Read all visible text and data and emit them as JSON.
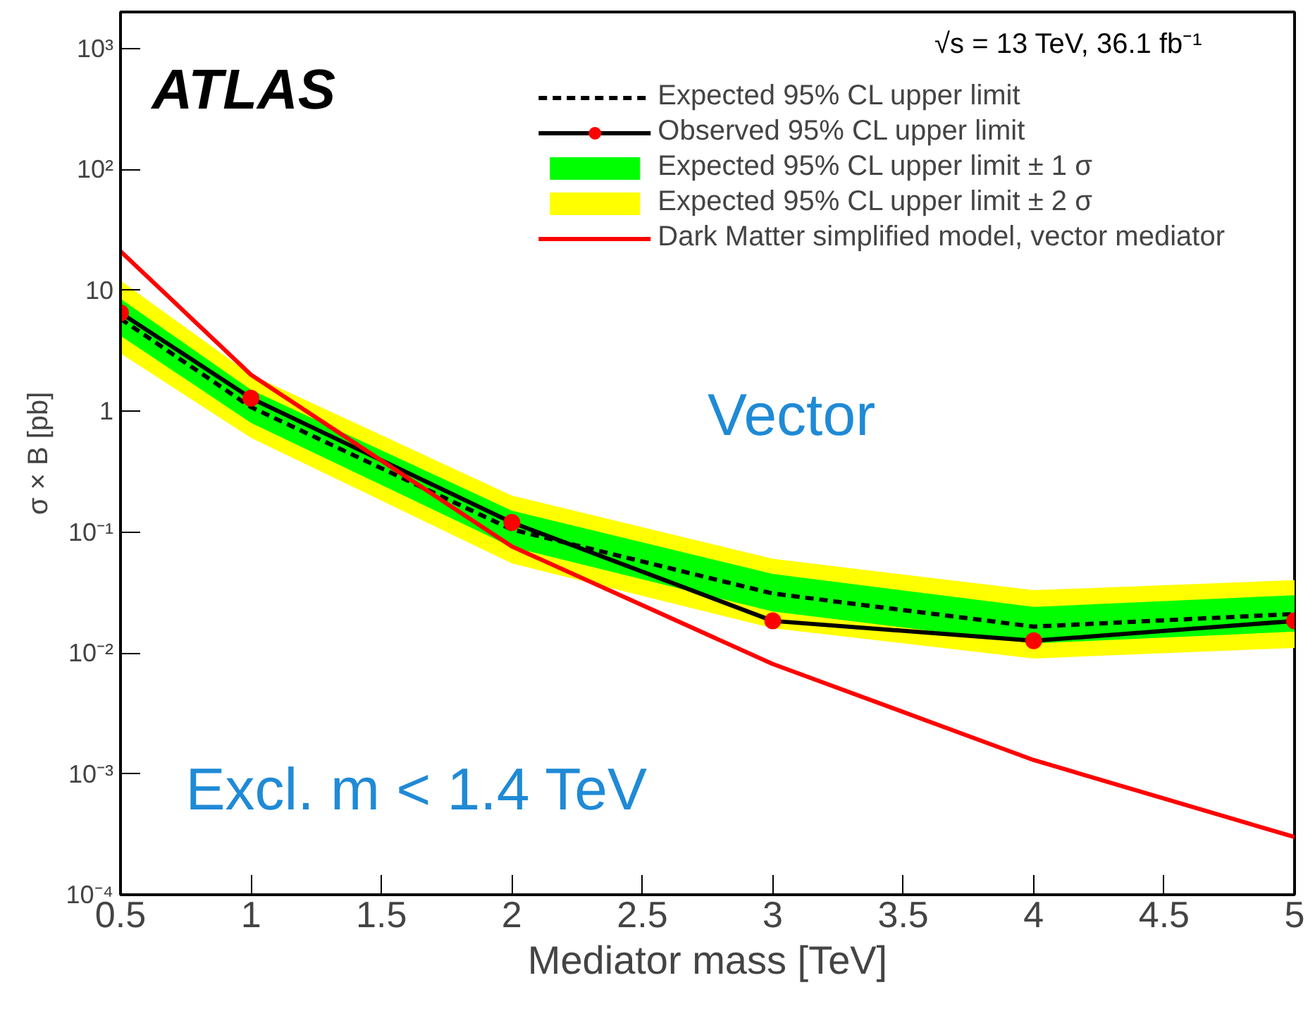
{
  "chart_data": {
    "type": "line",
    "x": [
      0.5,
      1,
      2,
      3,
      4,
      5
    ],
    "xlabel": "Mediator mass [TeV]",
    "ylabel": "σ × B [pb]",
    "xlim": [
      0.5,
      5
    ],
    "xticks": [
      0.5,
      1,
      1.5,
      2,
      2.5,
      3,
      3.5,
      4,
      4.5,
      5
    ],
    "ylim": [
      0.0001,
      2000
    ],
    "log": "y",
    "yticks": [
      {
        "value": 0.0001,
        "label": "10⁻⁴"
      },
      {
        "value": 0.001,
        "label": "10⁻³"
      },
      {
        "value": 0.01,
        "label": "10⁻²"
      },
      {
        "value": 0.1,
        "label": "10⁻¹"
      },
      1,
      10,
      {
        "value": 100,
        "label": "10²"
      },
      {
        "value": 1000,
        "label": "10³"
      }
    ],
    "grid": false,
    "legend": "top right",
    "series": [
      {
        "name": "Expected 95% CL upper limit ± 2 σ",
        "type": "area",
        "color": "#ffff00",
        "values": [
          null,
          null,
          null,
          null,
          null,
          null
        ],
        "lower": [
          3,
          0.6,
          0.055,
          0.016,
          0.009,
          0.011
        ],
        "upper": [
          12,
          2.0,
          0.2,
          0.06,
          0.033,
          0.04
        ]
      },
      {
        "name": "Expected 95% CL upper limit ± 1 σ",
        "type": "area",
        "color": "#00ff00",
        "values": [
          null,
          null,
          null,
          null,
          null,
          null
        ],
        "lower": [
          4.2,
          0.8,
          0.075,
          0.022,
          0.012,
          0.015
        ],
        "upper": [
          8.5,
          1.5,
          0.15,
          0.045,
          0.024,
          0.03
        ]
      },
      {
        "name": "Expected 95% CL upper limit",
        "type": "line",
        "color": "#000000",
        "line_style": "dashed",
        "marker": "none",
        "values": [
          5.8,
          1.08,
          0.105,
          0.031,
          0.0165,
          0.021
        ]
      },
      {
        "name": "Observed 95% CL upper limit",
        "type": "line",
        "color": "#000000",
        "line_style": "solid",
        "marker": "circle",
        "values": [
          6.5,
          1.28,
          0.12,
          0.0184,
          0.0126,
          0.0184
        ]
      },
      {
        "name": "Dark Matter simplified model, vector mediator",
        "type": "line",
        "color": "#ff0000",
        "line_style": "solid",
        "marker": "none",
        "values": [
          21,
          2.0,
          0.076,
          0.0081,
          0.0013,
          0.0003
        ]
      }
    ],
    "annotations": [
      "ATLAS",
      "√s = 13 TeV, 36.1 fb⁻¹",
      "Vector",
      "Excl. m < 1.4 TeV"
    ]
  }
}
